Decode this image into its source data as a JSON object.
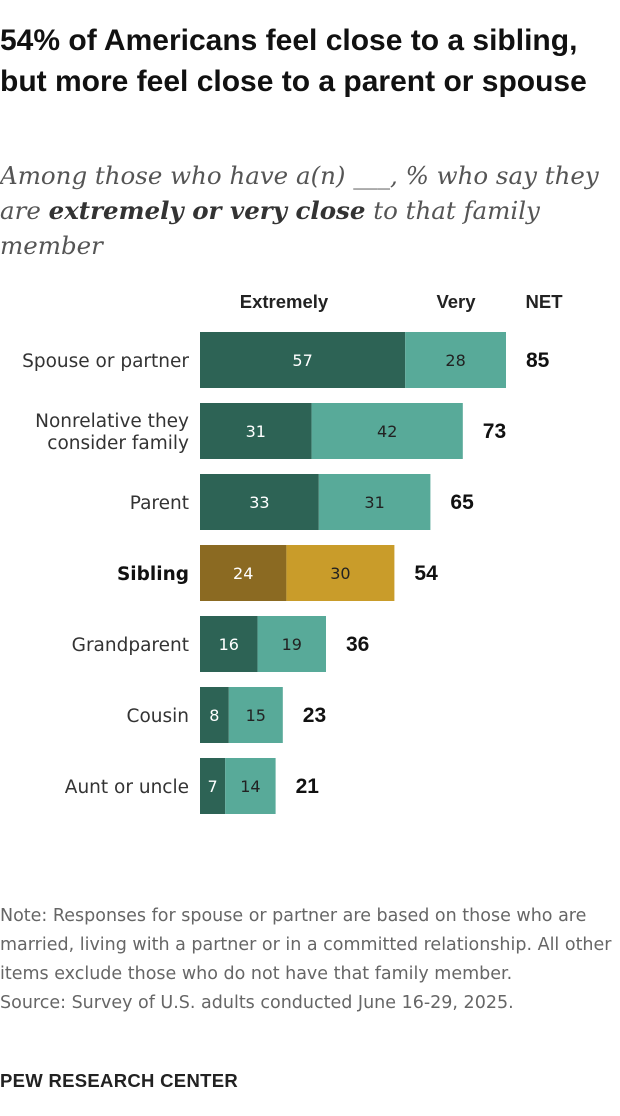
{
  "title": "54% of Americans feel close to a sibling, but more feel close to a parent or spouse",
  "subtitle": {
    "before": "Among those who have a(n) ___, % who say they are ",
    "emphasis": "extremely or very close",
    "after": " to that family member"
  },
  "note": "Note: Responses for spouse or partner are based on those who are married, living with a partner or in a committed relationship. All other items exclude those who do not have that family member.",
  "source": "Source: Survey of U.S. adults conducted June 16-29, 2025.",
  "logo": "PEW RESEARCH CENTER",
  "colors": {
    "extremely": "#2d6355",
    "very": "#58aa99",
    "highlight_extremely": "#8b6a22",
    "highlight_very": "#c99c2a",
    "label_dark_bar": "#ffffff",
    "label_light_bar": "#222222"
  },
  "chart_data": {
    "type": "bar",
    "orientation": "horizontal",
    "stacked": true,
    "categories": [
      "Spouse or partner",
      "Nonrelative they consider family",
      "Parent",
      "Sibling",
      "Grandparent",
      "Cousin",
      "Aunt or uncle"
    ],
    "category_lines": [
      [
        "Spouse or partner"
      ],
      [
        "Nonrelative they",
        "consider family"
      ],
      [
        "Parent"
      ],
      [
        "Sibling"
      ],
      [
        "Grandparent"
      ],
      [
        "Cousin"
      ],
      [
        "Aunt or uncle"
      ]
    ],
    "highlight": "Sibling",
    "series": [
      {
        "name": "Extremely",
        "values": [
          57,
          31,
          33,
          24,
          16,
          8,
          7
        ]
      },
      {
        "name": "Very",
        "values": [
          28,
          42,
          31,
          30,
          19,
          15,
          14
        ]
      }
    ],
    "net_label": "NET",
    "net": [
      85,
      73,
      65,
      54,
      36,
      23,
      21
    ],
    "xlim": [
      0,
      100
    ]
  }
}
